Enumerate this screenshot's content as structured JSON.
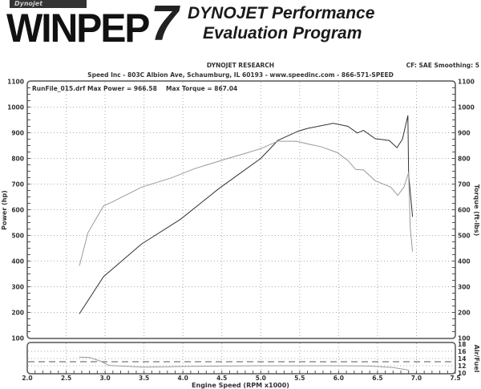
{
  "header": {
    "logo_small": "Dynojet",
    "logo_main": "WINPEP",
    "logo_seven": "7",
    "title_line1": "DYNOJET Performance",
    "title_line2": "Evaluation Program",
    "company": "DYNOJET RESEARCH",
    "address": "Speed Inc - 803C Albion Ave, Schaumburg, IL 60193 - www.speedinc.com - 866-571-SPEED",
    "settings": "CF: SAE  Smoothing: 5",
    "run_info": "RunFile_015.drf Max Power = 966.58",
    "max_torque": "Max Torque = 867.04"
  },
  "chart_data": [
    {
      "type": "line",
      "xlabel": "Engine Speed (RPM x1000)",
      "ylabel": "Power (hp)",
      "ylabel_right": "Torque (ft-lbs)",
      "xlim": [
        2.0,
        7.5
      ],
      "ylim": [
        100,
        1100
      ],
      "x_ticks": [
        "2.0",
        "2.5",
        "3.0",
        "3.5",
        "4.0",
        "4.5",
        "5.0",
        "5.5",
        "6.0",
        "6.5",
        "7.0",
        "7.5"
      ],
      "y_ticks": [
        "100",
        "200",
        "300",
        "400",
        "500",
        "600",
        "700",
        "800",
        "900",
        "1000",
        "1100"
      ],
      "grid": true,
      "colors": {
        "power": "#333333",
        "torque": "#9a9a9a"
      },
      "series": [
        {
          "key": "power",
          "x": [
            2.67,
            2.98,
            3.47,
            3.97,
            4.46,
            4.74,
            5.0,
            5.22,
            5.48,
            5.6,
            5.93,
            6.12,
            6.24,
            6.32,
            6.47,
            6.65,
            6.75,
            6.82,
            6.89,
            6.9,
            6.95
          ],
          "y": [
            195,
            339,
            467,
            563,
            682,
            743,
            800,
            870,
            906,
            917,
            937,
            925,
            899,
            909,
            877,
            870,
            842,
            875,
            967,
            739,
            573
          ]
        },
        {
          "key": "torque",
          "x": [
            2.67,
            2.78,
            2.98,
            3.09,
            3.47,
            3.85,
            4.15,
            4.6,
            4.74,
            5.0,
            5.22,
            5.46,
            5.64,
            5.77,
            5.98,
            6.12,
            6.22,
            6.32,
            6.47,
            6.67,
            6.76,
            6.84,
            6.9,
            6.92,
            6.95
          ],
          "y": [
            382,
            510,
            615,
            630,
            688,
            724,
            760,
            802,
            814,
            838,
            867,
            867,
            854,
            846,
            823,
            792,
            757,
            755,
            713,
            688,
            656,
            688,
            745,
            531,
            437
          ]
        }
      ]
    },
    {
      "type": "line",
      "ylabel_right": "Air/Fuel",
      "xlim": [
        2.0,
        7.5
      ],
      "ylim": [
        10,
        18
      ],
      "y_ticks": [
        "10",
        "12",
        "14",
        "16",
        "18"
      ],
      "reference_line": 13.1,
      "colors": {
        "afr": "#9a9a9a",
        "reference": "#555555"
      },
      "series": [
        {
          "key": "afr",
          "x": [
            2.67,
            2.8,
            2.95,
            3.05,
            3.5,
            4.0,
            4.5,
            5.0,
            5.5,
            6.0,
            6.4,
            6.7,
            6.9
          ],
          "y": [
            14.4,
            14.3,
            13.2,
            12.1,
            11.6,
            11.8,
            11.9,
            12.0,
            12.0,
            12.0,
            11.9,
            11.5,
            10.8
          ]
        }
      ]
    }
  ]
}
